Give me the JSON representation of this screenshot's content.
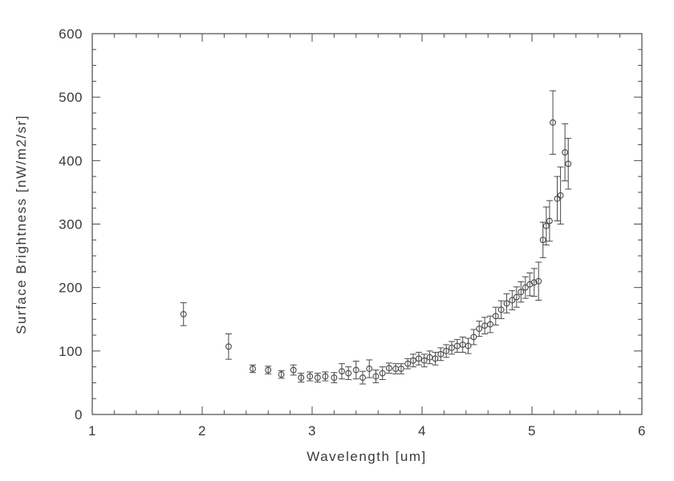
{
  "chart_data": {
    "type": "scatter",
    "marker": "open-circle",
    "error_bars": true,
    "grid": false,
    "title": "",
    "xlabel": "Wavelength [um]",
    "ylabel": "Surface Brightness [nW/m2/sr]",
    "xlim": [
      1,
      6
    ],
    "ylim": [
      0,
      600
    ],
    "xticks": [
      1,
      2,
      3,
      4,
      5,
      6
    ],
    "yticks": [
      0,
      100,
      200,
      300,
      400,
      500,
      600
    ],
    "x_minor_step": 0.2,
    "y_minor_step": 25,
    "line_color": "#4a4a4a",
    "x": [
      1.83,
      2.24,
      2.46,
      2.6,
      2.72,
      2.83,
      2.9,
      2.98,
      3.05,
      3.12,
      3.2,
      3.27,
      3.33,
      3.4,
      3.46,
      3.52,
      3.58,
      3.64,
      3.7,
      3.76,
      3.81,
      3.87,
      3.92,
      3.97,
      4.02,
      4.07,
      4.12,
      4.17,
      4.22,
      4.27,
      4.32,
      4.37,
      4.42,
      4.47,
      4.52,
      4.57,
      4.62,
      4.67,
      4.72,
      4.77,
      4.82,
      4.86,
      4.9,
      4.94,
      4.98,
      5.02,
      5.06,
      5.1,
      5.13,
      5.16,
      5.19,
      5.23,
      5.26,
      5.3,
      5.33
    ],
    "y": [
      158,
      107,
      72,
      70,
      63,
      70,
      58,
      60,
      58,
      60,
      58,
      68,
      65,
      70,
      58,
      72,
      60,
      65,
      73,
      72,
      72,
      80,
      85,
      88,
      85,
      90,
      88,
      95,
      100,
      105,
      108,
      110,
      108,
      122,
      135,
      140,
      142,
      155,
      165,
      175,
      180,
      185,
      193,
      200,
      205,
      208,
      210,
      275,
      297,
      305,
      460,
      340,
      345,
      413,
      395
    ],
    "yerr": [
      18,
      20,
      6,
      6,
      6,
      8,
      7,
      7,
      7,
      7,
      8,
      12,
      10,
      14,
      10,
      14,
      10,
      10,
      8,
      8,
      8,
      8,
      10,
      10,
      10,
      10,
      10,
      10,
      10,
      10,
      10,
      12,
      12,
      12,
      12,
      13,
      13,
      14,
      14,
      15,
      15,
      16,
      16,
      17,
      18,
      22,
      30,
      28,
      30,
      32,
      50,
      35,
      45,
      45,
      40
    ]
  }
}
